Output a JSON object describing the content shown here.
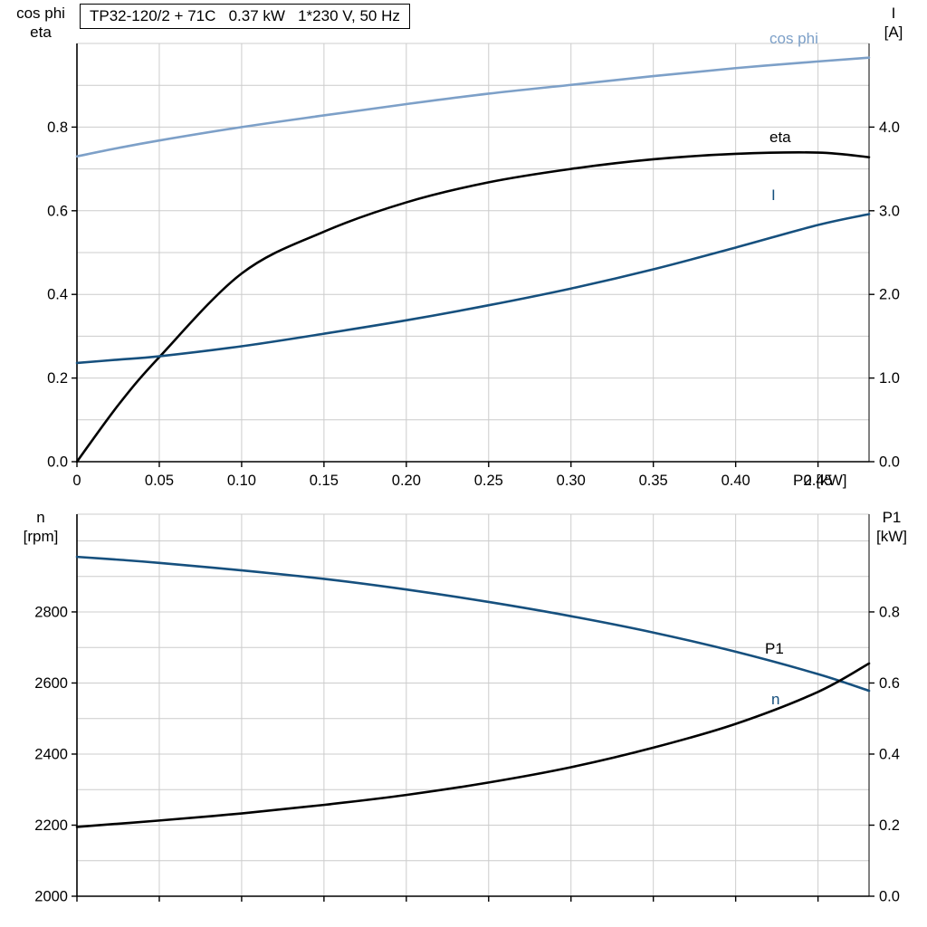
{
  "title": "TP32-120/2 + 71C   0.37 kW   1*230 V, 50 Hz",
  "colors": {
    "light_blue": "#7da0c8",
    "dark_blue": "#16507e",
    "black": "#000000",
    "grid": "#cccccc",
    "axis": "#000000"
  },
  "labels": {
    "top_left_axis": "cos phi\neta",
    "top_right_axis": "I\n[A]",
    "x_axis": "P2 [kW]",
    "bottom_left_axis": "n\n[rpm]",
    "bottom_right_axis": "P1\n[kW]",
    "curve_cos_phi": "cos phi",
    "curve_eta": "eta",
    "curve_i": "I",
    "curve_p1": "P1",
    "curve_n": "n"
  },
  "chart_data": [
    {
      "type": "line",
      "title": "TP32-120/2 + 71C   0.37 kW   1*230 V, 50 Hz",
      "xlabel": "P2 [kW]",
      "xlim": [
        0,
        0.481
      ],
      "x": [
        0,
        0.025,
        0.05,
        0.1,
        0.15,
        0.2,
        0.25,
        0.3,
        0.35,
        0.4,
        0.45,
        0.481
      ],
      "x_ticks": {
        "values": [
          0,
          0.05,
          0.1,
          0.15,
          0.2,
          0.25,
          0.3,
          0.35,
          0.4,
          0.45
        ],
        "labels": [
          "0",
          "0.05",
          "0.10",
          "0.15",
          "0.20",
          "0.25",
          "0.30",
          "0.35",
          "0.40",
          "0.45"
        ]
      },
      "left_axis": {
        "label": "cos phi / eta",
        "lim": [
          0,
          1.0
        ],
        "grid_step": 0.1,
        "ticks": [
          0,
          0.2,
          0.4,
          0.6,
          0.8
        ],
        "tick_labels": [
          "0.0",
          "0.2",
          "0.4",
          "0.6",
          "0.8"
        ]
      },
      "right_axis": {
        "label": "I [A]",
        "lim": [
          0,
          5.0
        ],
        "ticks": [
          0,
          1,
          2,
          3,
          4
        ],
        "tick_labels": [
          "0.0",
          "1.0",
          "2.0",
          "3.0",
          "4.0"
        ]
      },
      "series": [
        {
          "name": "cos phi",
          "axis": "left",
          "color": "light_blue",
          "values": [
            0.73,
            0.75,
            0.768,
            0.8,
            0.828,
            0.855,
            0.88,
            0.901,
            0.922,
            0.941,
            0.957,
            0.966
          ]
        },
        {
          "name": "eta",
          "axis": "left",
          "color": "black",
          "values": [
            0,
            0.135,
            0.25,
            0.45,
            0.55,
            0.62,
            0.668,
            0.7,
            0.723,
            0.736,
            0.739,
            0.728
          ]
        },
        {
          "name": "I",
          "axis": "right",
          "color": "dark_blue",
          "values": [
            1.18,
            1.22,
            1.26,
            1.38,
            1.53,
            1.69,
            1.87,
            2.07,
            2.3,
            2.56,
            2.83,
            2.96
          ]
        }
      ]
    },
    {
      "type": "line",
      "title": "",
      "xlabel": "",
      "xlim": [
        0,
        0.481
      ],
      "x": [
        0,
        0.025,
        0.05,
        0.1,
        0.15,
        0.2,
        0.25,
        0.3,
        0.35,
        0.4,
        0.45,
        0.481
      ],
      "x_ticks": {
        "values": [
          0,
          0.05,
          0.1,
          0.15,
          0.2,
          0.25,
          0.3,
          0.35,
          0.4,
          0.45
        ],
        "labels": [
          "",
          "",
          "",
          "",
          "",
          "",
          "",
          "",
          "",
          ""
        ]
      },
      "left_axis": {
        "label": "n [rpm]",
        "lim": [
          2000,
          3075
        ],
        "grid_step": 100,
        "ticks": [
          2000,
          2200,
          2400,
          2600,
          2800
        ],
        "tick_labels": [
          "2000",
          "2200",
          "2400",
          "2600",
          "2800"
        ]
      },
      "right_axis": {
        "label": "P1 [kW]",
        "lim": [
          0,
          1.075
        ],
        "ticks": [
          0,
          0.2,
          0.4,
          0.6,
          0.8
        ],
        "tick_labels": [
          "0.0",
          "0.2",
          "0.4",
          "0.6",
          "0.8"
        ]
      },
      "series": [
        {
          "name": "n",
          "axis": "left",
          "color": "dark_blue",
          "values": [
            2955,
            2947,
            2938,
            2917,
            2893,
            2863,
            2828,
            2788,
            2742,
            2688,
            2625,
            2578
          ]
        },
        {
          "name": "P1",
          "axis": "right",
          "color": "black",
          "values": [
            0.195,
            0.204,
            0.213,
            0.233,
            0.257,
            0.285,
            0.32,
            0.363,
            0.418,
            0.485,
            0.575,
            0.655
          ]
        }
      ]
    }
  ]
}
